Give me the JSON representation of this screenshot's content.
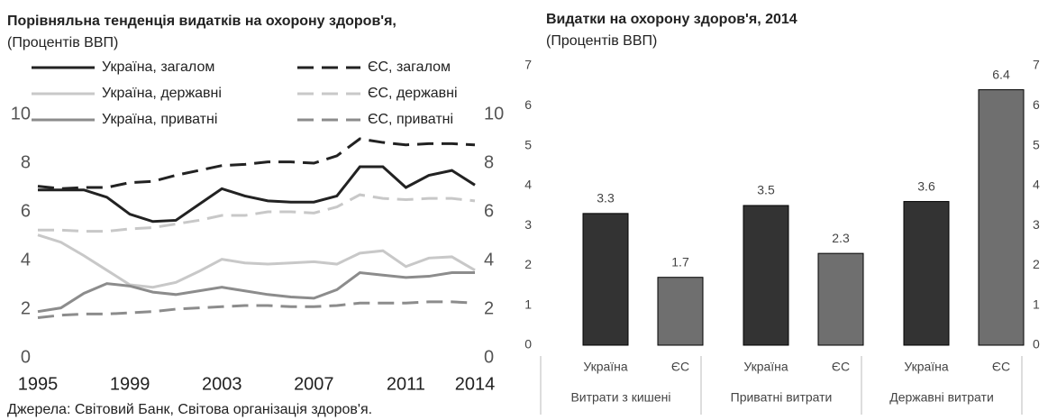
{
  "chart_data": [
    {
      "type": "line",
      "title": "Порівняльна тенденція видатків на охорону здоров'я,",
      "subtitle": "(Процентів ВВП)",
      "source": "Джерела: Світовий Банк, Світова організація здоров'я.",
      "x": [
        1995,
        1996,
        1997,
        1998,
        1999,
        2000,
        2001,
        2002,
        2003,
        2004,
        2005,
        2006,
        2007,
        2008,
        2009,
        2010,
        2011,
        2012,
        2013,
        2014
      ],
      "xlim": [
        1995,
        2014
      ],
      "xticks": [
        1995,
        1999,
        2003,
        2007,
        2011,
        2014
      ],
      "ylim": [
        0,
        10
      ],
      "yticks": [
        0,
        2,
        4,
        6,
        8,
        10
      ],
      "y2lim": [
        0,
        10
      ],
      "y2ticks": [
        0,
        2,
        4,
        6,
        8,
        10
      ],
      "series": [
        {
          "name": "Україна, загалом",
          "color": "#222222",
          "dashed": false,
          "values": [
            6.9,
            6.9,
            6.9,
            6.6,
            5.9,
            5.6,
            5.65,
            6.3,
            6.95,
            6.65,
            6.45,
            6.4,
            6.4,
            6.65,
            7.85,
            7.85,
            7.0,
            7.5,
            7.7,
            7.1
          ]
        },
        {
          "name": "ЄС, загалом",
          "color": "#222222",
          "dashed": true,
          "values": [
            7.05,
            6.95,
            7.0,
            7.0,
            7.2,
            7.25,
            7.5,
            7.7,
            7.9,
            7.95,
            8.05,
            8.05,
            8.0,
            8.3,
            9.0,
            8.85,
            8.75,
            8.8,
            8.8,
            8.75
          ]
        },
        {
          "name": "Україна, державні",
          "color": "#c8c8c8",
          "dashed": false,
          "values": [
            5.05,
            4.75,
            4.2,
            3.6,
            3.0,
            2.9,
            3.1,
            3.55,
            4.05,
            3.9,
            3.85,
            3.9,
            3.95,
            3.85,
            4.3,
            4.4,
            3.75,
            4.1,
            4.15,
            3.6
          ]
        },
        {
          "name": "ЄС, державні",
          "color": "#c8c8c8",
          "dashed": true,
          "values": [
            5.25,
            5.25,
            5.2,
            5.2,
            5.3,
            5.35,
            5.5,
            5.65,
            5.85,
            5.85,
            6.0,
            6.0,
            5.95,
            6.2,
            6.7,
            6.55,
            6.5,
            6.55,
            6.55,
            6.45
          ]
        },
        {
          "name": "Україна, приватні",
          "color": "#8c8c8c",
          "dashed": false,
          "values": [
            1.9,
            2.05,
            2.65,
            3.05,
            2.95,
            2.7,
            2.6,
            2.75,
            2.9,
            2.75,
            2.6,
            2.5,
            2.45,
            2.8,
            3.5,
            3.4,
            3.3,
            3.35,
            3.5,
            3.5
          ]
        },
        {
          "name": "ЄС, приватні",
          "color": "#8c8c8c",
          "dashed": true,
          "values": [
            1.65,
            1.75,
            1.8,
            1.8,
            1.85,
            1.9,
            2.0,
            2.05,
            2.1,
            2.15,
            2.15,
            2.1,
            2.1,
            2.15,
            2.25,
            2.25,
            2.25,
            2.3,
            2.3,
            2.25
          ]
        }
      ]
    },
    {
      "type": "bar",
      "title": "Видатки на охорону здоров'я, 2014",
      "subtitle": "(Процентів ВВП)",
      "categories": [
        "Витрати з кишені",
        "Приватні витрати",
        "Державні витрати"
      ],
      "ylim": [
        0,
        7
      ],
      "yticks": [
        0,
        1,
        2,
        3,
        4,
        5,
        6,
        7
      ],
      "y2lim": [
        0,
        7
      ],
      "y2ticks": [
        0,
        1,
        2,
        3,
        4,
        5,
        6,
        7
      ],
      "series": [
        {
          "name": "Україна",
          "color": "#333333",
          "values": [
            3.3,
            3.5,
            3.6
          ]
        },
        {
          "name": "ЄС",
          "color": "#6f6f6f",
          "values": [
            1.7,
            2.3,
            6.4
          ]
        }
      ]
    }
  ]
}
